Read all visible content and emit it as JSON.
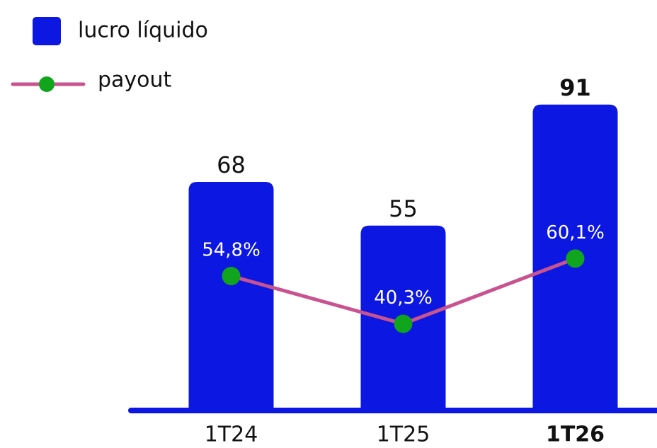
{
  "chart_data": {
    "type": "bar",
    "categories": [
      "1T24",
      "1T25",
      "1T26"
    ],
    "highlight": "1T26",
    "series": [
      {
        "name": "lucro líquido",
        "type": "bar",
        "color": "#0c17e2",
        "values": [
          68,
          55,
          91
        ]
      },
      {
        "name": "payout",
        "type": "line",
        "axis": "y2",
        "color": "#c9538f",
        "marker_color": "#10a51c",
        "values": [
          54.8,
          40.3,
          60.1
        ],
        "value_labels": [
          "54,8%",
          "40,3%",
          "60,1%"
        ]
      }
    ],
    "ylim": [
      0,
      100
    ],
    "y2lim": [
      14,
      116
    ],
    "legend": "top-left"
  }
}
